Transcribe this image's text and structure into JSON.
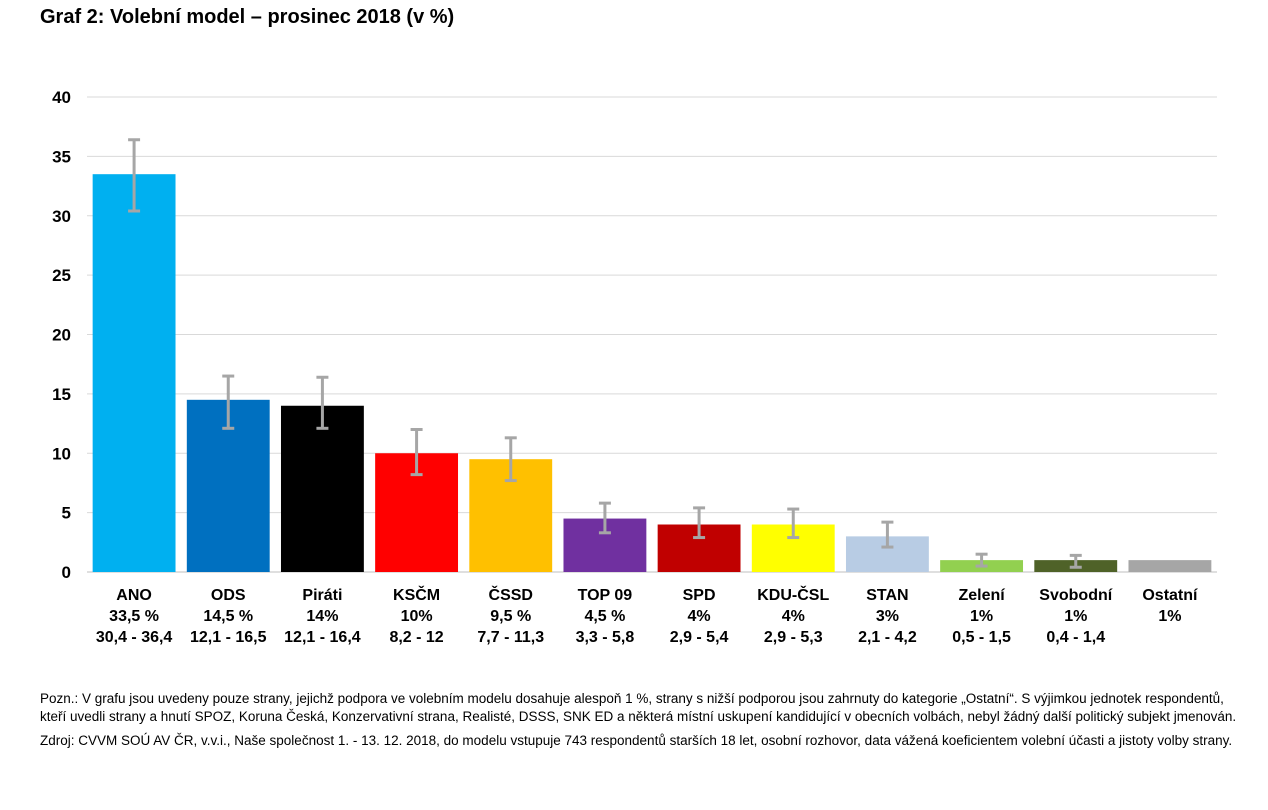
{
  "title": "Graf 2: Volební model – prosinec 2018 (v %)",
  "chart_data": {
    "type": "bar",
    "title": "Graf 2: Volební model – prosinec 2018 (v %)",
    "xlabel": "",
    "ylabel": "",
    "ylim": [
      0,
      40
    ],
    "yticks": [
      "0",
      "5",
      "10",
      "15",
      "20",
      "25",
      "30",
      "35",
      "40"
    ],
    "grid": true,
    "legend": "none",
    "categories": [
      "ANO",
      "ODS",
      "Piráti",
      "KSČM",
      "ČSSD",
      "TOP 09",
      "SPD",
      "KDU-ČSL",
      "STAN",
      "Zelení",
      "Svobodní",
      "Ostatní"
    ],
    "values": [
      33.5,
      14.5,
      14,
      10,
      9.5,
      4.5,
      4,
      4,
      3,
      1,
      1,
      1
    ],
    "value_labels": [
      "33,5 %",
      "14,5 %",
      "14%",
      "10%",
      "9,5 %",
      "4,5 %",
      "4%",
      "4%",
      "3%",
      "1%",
      "1%",
      "1%"
    ],
    "range_labels": [
      "30,4 - 36,4",
      "12,1 - 16,5",
      "12,1 - 16,4",
      "8,2 - 12",
      "7,7 - 11,3",
      "3,3 - 5,8",
      "2,9 - 5,4",
      "2,9 - 5,3",
      "2,1 - 4,2",
      "0,5 - 1,5",
      "0,4 - 1,4",
      ""
    ],
    "error_low": [
      30.4,
      12.1,
      12.1,
      8.2,
      7.7,
      3.3,
      2.9,
      2.9,
      2.1,
      0.5,
      0.4,
      null
    ],
    "error_high": [
      36.4,
      16.5,
      16.4,
      12,
      11.3,
      5.8,
      5.4,
      5.3,
      4.2,
      1.5,
      1.4,
      null
    ],
    "colors": [
      "#00B0F0",
      "#0070C0",
      "#000000",
      "#FF0000",
      "#FFC000",
      "#7030A0",
      "#C00000",
      "#FFFF00",
      "#B8CCE4",
      "#92D050",
      "#4F6228",
      "#A6A6A6"
    ],
    "error_bar_color": "#A6A6A6",
    "grid_color": "#D9D9D9"
  },
  "notes": {
    "note": "Pozn.: V grafu jsou uvedeny pouze strany, jejichž podpora ve volebním modelu dosahuje alespoň 1 %, strany s nižší podporou jsou zahrnuty do kategorie „Ostatní“. S výjimkou jednotek respondentů, kteří uvedli strany a hnutí SPOZ, Koruna Česká, Konzervativní strana, Realisté, DSSS, SNK ED a některá místní uskupení kandidující v obecních volbách, nebyl žádný další politický subjekt jmenován.",
    "source": "Zdroj: CVVM SOÚ AV ČR, v.v.i., Naše společnost 1. - 13. 12. 2018, do modelu vstupuje 743 respondentů starších 18 let, osobní rozhovor, data vážená koeficientem volební účasti a jistoty volby strany."
  }
}
